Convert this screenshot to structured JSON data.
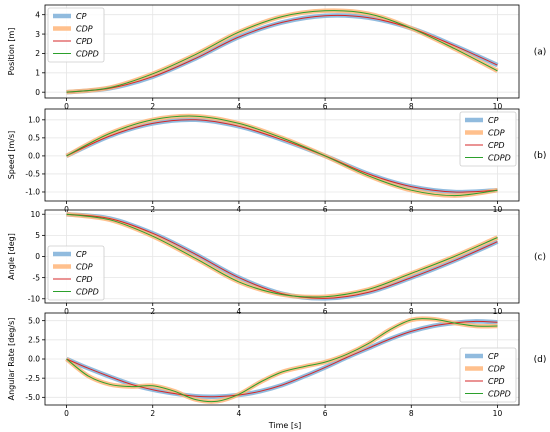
{
  "figure": {
    "xlabel": "Time [s]"
  },
  "chart_data": [
    {
      "type": "line",
      "tag": "(a)",
      "ylabel": "Position [m]",
      "xlim": [
        -0.5,
        10.5
      ],
      "ylim": [
        -0.3,
        4.5
      ],
      "xticks": [
        0,
        2,
        4,
        6,
        8,
        10
      ],
      "yticks": [
        0,
        1,
        2,
        3,
        4
      ],
      "legend_position": "top-left",
      "x": [
        0,
        1,
        2,
        3,
        4,
        5,
        6,
        7,
        8,
        9,
        10
      ],
      "series": [
        {
          "name": "CP",
          "color": "#7eb0d9",
          "width": 4.5,
          "values": [
            0.0,
            0.2,
            0.8,
            1.75,
            2.85,
            3.6,
            3.95,
            3.85,
            3.3,
            2.4,
            1.4
          ]
        },
        {
          "name": "CDP",
          "color": "#ffb67a",
          "width": 4.5,
          "values": [
            0.0,
            0.23,
            0.95,
            1.95,
            3.1,
            3.9,
            4.2,
            4.05,
            3.3,
            2.25,
            1.1
          ]
        },
        {
          "name": "CPD",
          "color": "#d62728",
          "width": 1.0,
          "values": [
            0.0,
            0.2,
            0.8,
            1.75,
            2.85,
            3.6,
            3.95,
            3.85,
            3.3,
            2.4,
            1.4
          ]
        },
        {
          "name": "CDPD",
          "color": "#2ca02c",
          "width": 1.0,
          "values": [
            0.0,
            0.23,
            0.95,
            1.95,
            3.1,
            3.9,
            4.2,
            4.05,
            3.3,
            2.25,
            1.1
          ]
        }
      ]
    },
    {
      "type": "line",
      "tag": "(b)",
      "ylabel": "Speed [m/s]",
      "xlim": [
        -0.5,
        10.5
      ],
      "ylim": [
        -1.25,
        1.3
      ],
      "xticks": [
        0,
        2,
        4,
        6,
        8,
        10
      ],
      "yticks": [
        -1.0,
        -0.5,
        0.0,
        0.5,
        1.0
      ],
      "legend_position": "top-right",
      "x": [
        0,
        1,
        2,
        3,
        4,
        5,
        6,
        7,
        8,
        9,
        10
      ],
      "series": [
        {
          "name": "CP",
          "color": "#7eb0d9",
          "width": 4.5,
          "values": [
            0.0,
            0.55,
            0.9,
            1.0,
            0.82,
            0.45,
            0.0,
            -0.5,
            -0.85,
            -1.0,
            -0.95
          ]
        },
        {
          "name": "CDP",
          "color": "#ffb67a",
          "width": 4.5,
          "values": [
            0.0,
            0.62,
            1.0,
            1.1,
            0.9,
            0.5,
            0.0,
            -0.55,
            -0.95,
            -1.1,
            -0.95
          ]
        },
        {
          "name": "CPD",
          "color": "#d62728",
          "width": 1.0,
          "values": [
            0.0,
            0.55,
            0.9,
            1.0,
            0.82,
            0.45,
            0.0,
            -0.5,
            -0.85,
            -1.0,
            -0.95
          ]
        },
        {
          "name": "CDPD",
          "color": "#2ca02c",
          "width": 1.0,
          "values": [
            0.0,
            0.62,
            1.0,
            1.1,
            0.9,
            0.5,
            0.0,
            -0.55,
            -0.95,
            -1.1,
            -0.95
          ]
        }
      ]
    },
    {
      "type": "line",
      "tag": "(c)",
      "ylabel": "Angle [deg]",
      "xlim": [
        -0.5,
        10.5
      ],
      "ylim": [
        -11.0,
        11.0
      ],
      "xticks": [
        0,
        2,
        4,
        6,
        8,
        10
      ],
      "yticks": [
        -10,
        -5,
        0,
        5,
        10
      ],
      "legend_position": "bottom-left",
      "x": [
        0,
        1,
        2,
        3,
        4,
        5,
        6,
        7,
        8,
        9,
        10
      ],
      "series": [
        {
          "name": "CP",
          "color": "#7eb0d9",
          "width": 4.5,
          "values": [
            10.0,
            9.0,
            5.5,
            0.5,
            -5.0,
            -8.8,
            -9.9,
            -8.5,
            -5.0,
            -1.0,
            3.5
          ]
        },
        {
          "name": "CDP",
          "color": "#ffb67a",
          "width": 4.5,
          "values": [
            10.0,
            8.7,
            4.8,
            -0.5,
            -6.0,
            -9.0,
            -9.5,
            -7.8,
            -4.0,
            0.0,
            4.5
          ]
        },
        {
          "name": "CPD",
          "color": "#d62728",
          "width": 1.0,
          "values": [
            10.0,
            9.0,
            5.5,
            0.5,
            -5.0,
            -8.8,
            -9.9,
            -8.5,
            -5.0,
            -1.0,
            3.5
          ]
        },
        {
          "name": "CDPD",
          "color": "#2ca02c",
          "width": 1.0,
          "values": [
            10.0,
            8.7,
            4.8,
            -0.5,
            -6.0,
            -9.0,
            -9.5,
            -7.8,
            -4.0,
            0.0,
            4.5
          ]
        }
      ]
    },
    {
      "type": "line",
      "tag": "(d)",
      "ylabel": "Angular Rate [deg/s]",
      "xlim": [
        -0.5,
        10.5
      ],
      "ylim": [
        -6.0,
        6.0
      ],
      "xticks": [
        0,
        2,
        4,
        6,
        8,
        10
      ],
      "yticks": [
        -5.0,
        -2.5,
        0.0,
        2.5,
        5.0
      ],
      "legend_position": "bottom-right",
      "x": [
        0,
        0.5,
        1,
        1.5,
        2,
        2.5,
        3,
        3.5,
        4,
        4.5,
        5,
        5.5,
        6,
        6.5,
        7,
        7.5,
        8,
        8.5,
        9,
        9.5,
        10
      ],
      "series": [
        {
          "name": "CP",
          "color": "#7eb0d9",
          "width": 4.5,
          "values": [
            0.0,
            -1.2,
            -2.3,
            -3.3,
            -4.0,
            -4.5,
            -4.85,
            -4.9,
            -4.7,
            -4.2,
            -3.4,
            -2.3,
            -1.1,
            0.2,
            1.4,
            2.6,
            3.6,
            4.3,
            4.7,
            4.9,
            4.8
          ]
        },
        {
          "name": "CDP",
          "color": "#ffb67a",
          "width": 4.5,
          "values": [
            0.0,
            -2.2,
            -3.3,
            -3.6,
            -3.5,
            -4.2,
            -5.3,
            -5.5,
            -4.6,
            -3.0,
            -1.7,
            -1.0,
            -0.4,
            0.6,
            2.0,
            3.8,
            5.1,
            5.2,
            4.7,
            4.3,
            4.3
          ]
        },
        {
          "name": "CPD",
          "color": "#d62728",
          "width": 1.0,
          "values": [
            0.0,
            -1.2,
            -2.3,
            -3.3,
            -4.0,
            -4.5,
            -4.85,
            -4.9,
            -4.7,
            -4.2,
            -3.4,
            -2.3,
            -1.1,
            0.2,
            1.4,
            2.6,
            3.6,
            4.3,
            4.7,
            4.9,
            4.8
          ]
        },
        {
          "name": "CDPD",
          "color": "#2ca02c",
          "width": 1.0,
          "values": [
            0.0,
            -2.2,
            -3.3,
            -3.6,
            -3.5,
            -4.2,
            -5.3,
            -5.5,
            -4.6,
            -3.0,
            -1.7,
            -1.0,
            -0.4,
            0.6,
            2.0,
            3.8,
            5.1,
            5.2,
            4.7,
            4.3,
            4.3
          ]
        }
      ]
    }
  ]
}
